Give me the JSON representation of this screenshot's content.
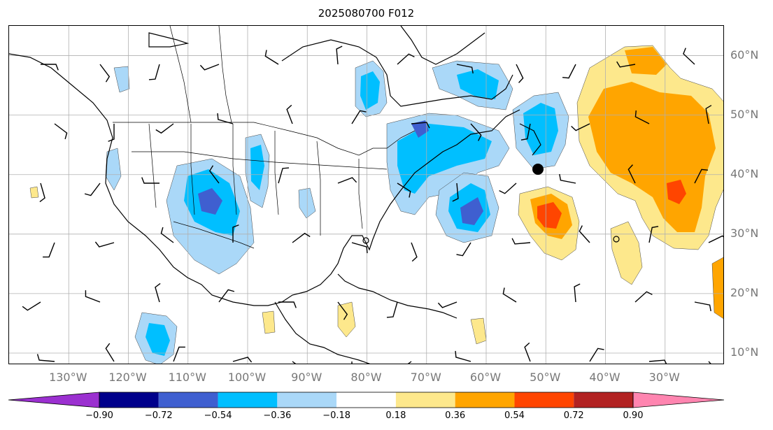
{
  "title": "2025080700 F012",
  "colors": {
    "background": "#ffffff",
    "grid": "#b0b0b0",
    "coast": "#000000",
    "pos_light": "#fde88c",
    "pos_mid": "#ffa500",
    "pos_strong": "#ff4500",
    "neg_light": "#aad8f8",
    "neg_mid": "#00bfff",
    "neg_strong": "#3f5fd0"
  },
  "map": {
    "projection": "lat-lon",
    "lon_range": [
      -140,
      -20
    ],
    "lat_range": [
      8,
      65
    ],
    "lon_labels": [
      "130°W",
      "120°W",
      "110°W",
      "100°W",
      "90°W",
      "80°W",
      "70°W",
      "60°W",
      "50°W",
      "40°W",
      "30°W"
    ],
    "lat_labels": [
      "60°N",
      "50°N",
      "40°N",
      "30°N",
      "20°N",
      "10°N"
    ],
    "grid": true
  },
  "colorbar": {
    "extend": "both",
    "ticks": [
      "−0.90",
      "−0.72",
      "−0.54",
      "−0.36",
      "−0.18",
      "0.18",
      "0.36",
      "0.54",
      "0.72",
      "0.90"
    ],
    "colors": [
      "#9b30d0",
      "#00008b",
      "#3f5fd0",
      "#00bfff",
      "#aad8f8",
      "#ffffff",
      "#fde88c",
      "#ffa500",
      "#ff4500",
      "#b22222",
      "#ff85b0"
    ]
  }
}
